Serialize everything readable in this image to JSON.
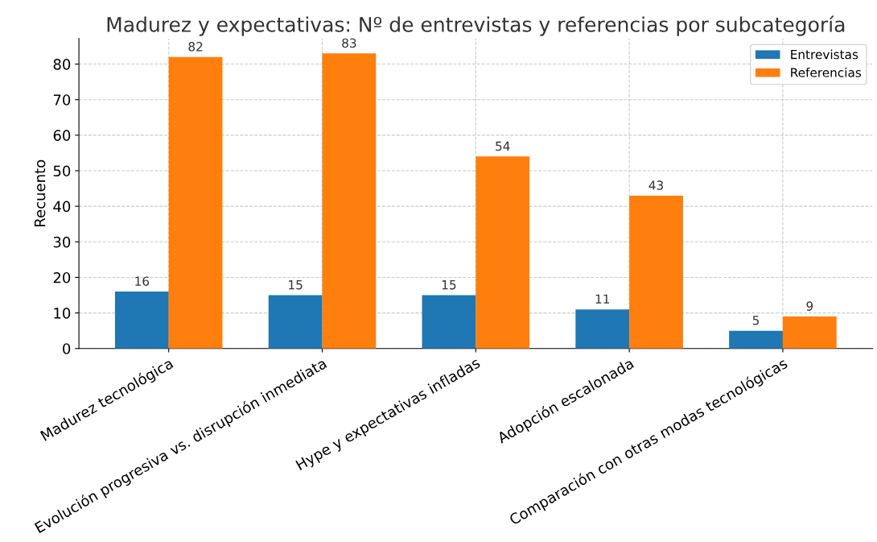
{
  "chart_data": {
    "type": "bar",
    "title": "Madurez y expectativas: Nº de entrevistas y referencias por subcategoría",
    "ylabel": "Recuento",
    "categories": [
      "Madurez tecnológica",
      "Evolución progresiva vs. disrupción inmediata",
      "Hype y expectativas infladas",
      "Adopción escalonada",
      "Comparación con otras modas tecnológicas"
    ],
    "series": [
      {
        "name": "Entrevistas",
        "color": "#1f77b4",
        "values": [
          16,
          15,
          15,
          11,
          5
        ]
      },
      {
        "name": "Referencias",
        "color": "#ff7f0e",
        "values": [
          82,
          83,
          54,
          43,
          9
        ]
      }
    ],
    "ylim": [
      0,
      87.2
    ],
    "yticks": [
      0,
      10,
      20,
      30,
      40,
      50,
      60,
      70,
      80
    ],
    "grid": true,
    "legend": "top right",
    "data_labels": true
  }
}
